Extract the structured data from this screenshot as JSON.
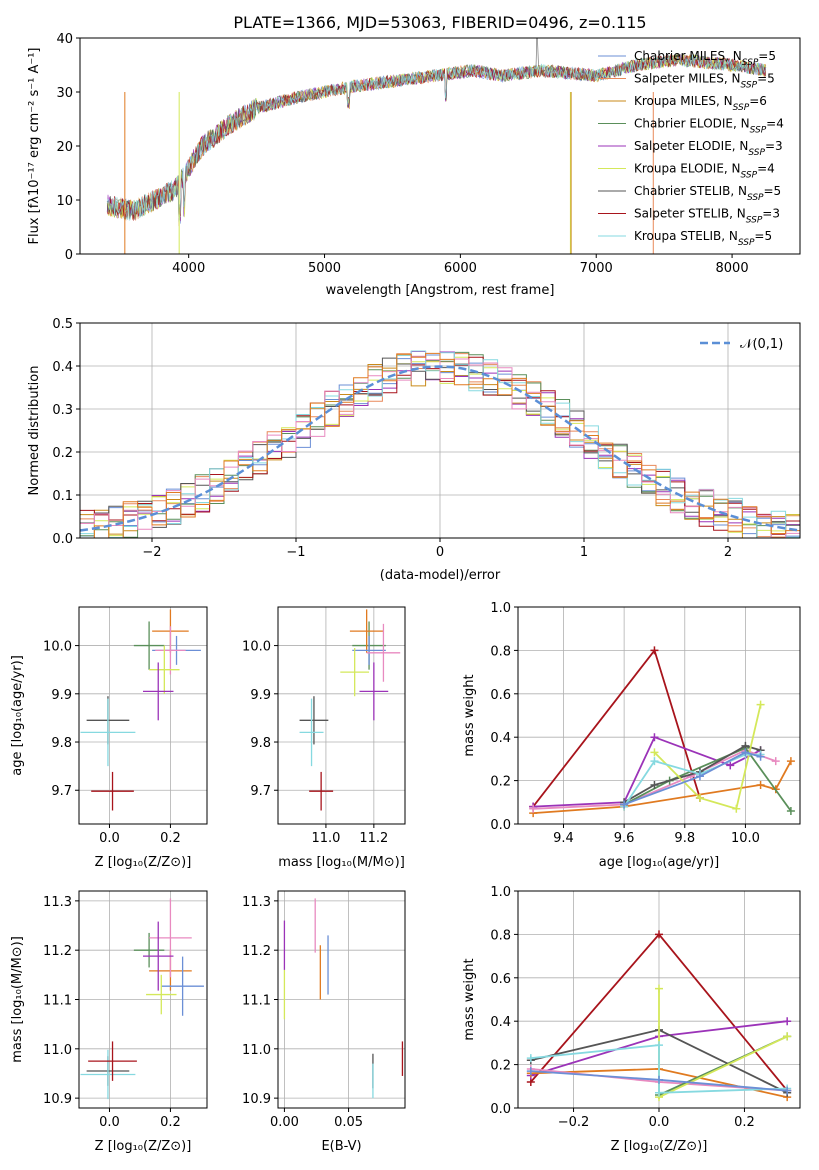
{
  "figure_title": "PLATE=1366, MJD=53063, FIBERID=0496, z=0.115",
  "colors": {
    "chabrier_miles": "#6b8fd6",
    "salpeter_miles": "#e8895a",
    "kroupa_miles": "#c98a1a",
    "chabrier_elodie": "#5a8f5a",
    "salpeter_elodie": "#9b33b8",
    "kroupa_elodie": "#d4e85a",
    "chabrier_stelib": "#555555",
    "salpeter_stelib": "#a8141c",
    "kroupa_stelib": "#86d9e0",
    "normal_curve": "#5b8fd6",
    "pink": "#e88ac0",
    "orange": "#e07a20"
  },
  "chart_data": [
    {
      "id": "spectrum",
      "type": "line",
      "xlabel": "wavelength [Angstrom, rest frame]",
      "ylabel": "Flux [fλ10⁻¹⁷ erg cm⁻² s⁻¹ A⁻¹]",
      "xlim": [
        3200,
        8500
      ],
      "ylim": [
        0,
        40
      ],
      "xticks": [
        "4000",
        "5000",
        "6000",
        "7000",
        "8000"
      ],
      "yticks": [
        "0",
        "10",
        "20",
        "30",
        "40"
      ],
      "legend_position": "top-right",
      "series": [
        {
          "name": "Chabrier MILES, N_SSP=5",
          "color": "#6b8fd6"
        },
        {
          "name": "Salpeter MILES, N_SSP=5",
          "color": "#e8895a"
        },
        {
          "name": "Kroupa MILES, N_SSP=6",
          "color": "#c98a1a"
        },
        {
          "name": "Chabrier ELODIE, N_SSP=4",
          "color": "#5a8f5a"
        },
        {
          "name": "Salpeter ELODIE, N_SSP=3",
          "color": "#9b33b8"
        },
        {
          "name": "Kroupa ELODIE, N_SSP=4",
          "color": "#d4e85a"
        },
        {
          "name": "Chabrier STELIB, N_SSP=5",
          "color": "#555555"
        },
        {
          "name": "Salpeter STELIB, N_SSP=3",
          "color": "#a8141c"
        },
        {
          "name": "Kroupa STELIB, N_SSP=5",
          "color": "#86d9e0"
        }
      ],
      "continuum": [
        [
          3400,
          9
        ],
        [
          3600,
          8
        ],
        [
          3900,
          12
        ],
        [
          4100,
          20
        ],
        [
          4300,
          24
        ],
        [
          4500,
          27
        ],
        [
          4800,
          29
        ],
        [
          5000,
          30
        ],
        [
          5200,
          31
        ],
        [
          5500,
          32
        ],
        [
          5800,
          33
        ],
        [
          6100,
          34
        ],
        [
          6300,
          33
        ],
        [
          6600,
          34
        ],
        [
          7000,
          33
        ],
        [
          7300,
          35
        ],
        [
          7600,
          36
        ],
        [
          8000,
          35
        ],
        [
          8250,
          34
        ]
      ]
    },
    {
      "id": "residuals",
      "type": "bar",
      "xlabel": "(data-model)/error",
      "ylabel": "Normed distribution",
      "xlim": [
        -2.5,
        2.5
      ],
      "ylim": [
        0,
        0.5
      ],
      "xticks": [
        "−2",
        "−1",
        "0",
        "1",
        "2"
      ],
      "yticks": [
        "0.0",
        "0.1",
        "0.2",
        "0.3",
        "0.4",
        "0.5"
      ],
      "grid": true,
      "legend": "𝒩(0,1)",
      "legend_position": "top-right",
      "bin_width": 0.1
    },
    {
      "id": "age_vs_Z",
      "type": "scatter",
      "xlabel": "Z [log₁₀(Z/Z⊙)]",
      "ylabel": "age  [log₁₀(age/yr)]",
      "xlim": [
        -0.1,
        0.32
      ],
      "ylim": [
        9.63,
        10.08
      ],
      "xticks": [
        {
          "v": 0,
          "t": "0.0"
        },
        {
          "v": 0.2,
          "t": "0.2"
        }
      ],
      "yticks": [
        {
          "v": 9.7,
          "t": "9.7"
        },
        {
          "v": 9.8,
          "t": "9.8"
        },
        {
          "v": 9.9,
          "t": "9.9"
        },
        {
          "v": 10.0,
          "t": "10.0"
        }
      ],
      "points": [
        {
          "x": -0.005,
          "xerr": 0.07,
          "y": 9.845,
          "yerr": 0.05,
          "color": "#555555"
        },
        {
          "x": -0.005,
          "xerr": 0.09,
          "y": 9.82,
          "yerr": 0.07,
          "color": "#86d9e0"
        },
        {
          "x": 0.01,
          "xerr": 0.07,
          "y": 9.698,
          "yerr": 0.04,
          "color": "#a8141c"
        },
        {
          "x": 0.13,
          "xerr": 0.05,
          "y": 10.0,
          "yerr": 0.05,
          "color": "#5a8f5a"
        },
        {
          "x": 0.2,
          "xerr": 0.06,
          "y": 10.03,
          "yerr": 0.045,
          "color": "#e07a20"
        },
        {
          "x": 0.22,
          "xerr": 0.08,
          "y": 9.99,
          "yerr": 0.03,
          "color": "#6b8fd6"
        },
        {
          "x": 0.2,
          "xerr": 0.05,
          "y": 9.99,
          "yerr": 0.05,
          "color": "#e88ac0"
        },
        {
          "x": 0.18,
          "xerr": 0.05,
          "y": 9.95,
          "yerr": 0.05,
          "color": "#d4e85a"
        },
        {
          "x": 0.16,
          "xerr": 0.05,
          "y": 9.905,
          "yerr": 0.06,
          "color": "#9b33b8"
        }
      ]
    },
    {
      "id": "age_vs_mass",
      "type": "scatter",
      "xlabel": "mass [log₁₀(M/M⊙)]",
      "xlim": [
        10.8,
        11.33
      ],
      "ylim": [
        9.63,
        10.08
      ],
      "xticks": [
        {
          "v": 11.0,
          "t": "11.0"
        },
        {
          "v": 11.2,
          "t": "11.2"
        }
      ],
      "yticks": [
        {
          "v": 9.7,
          "t": "9.7"
        },
        {
          "v": 9.8,
          "t": "9.8"
        },
        {
          "v": 9.9,
          "t": "9.9"
        },
        {
          "v": 10.0,
          "t": "10.0"
        }
      ],
      "points": [
        {
          "x": 10.95,
          "xerr": 0.06,
          "y": 9.845,
          "yerr": 0.05,
          "color": "#555555"
        },
        {
          "x": 10.94,
          "xerr": 0.05,
          "y": 9.82,
          "yerr": 0.07,
          "color": "#86d9e0"
        },
        {
          "x": 10.98,
          "xerr": 0.05,
          "y": 9.698,
          "yerr": 0.04,
          "color": "#a8141c"
        },
        {
          "x": 11.18,
          "xerr": 0.07,
          "y": 10.0,
          "yerr": 0.05,
          "color": "#5a8f5a"
        },
        {
          "x": 11.17,
          "xerr": 0.07,
          "y": 10.03,
          "yerr": 0.045,
          "color": "#e07a20"
        },
        {
          "x": 11.18,
          "xerr": 0.07,
          "y": 9.99,
          "yerr": 0.03,
          "color": "#6b8fd6"
        },
        {
          "x": 11.24,
          "xerr": 0.07,
          "y": 9.985,
          "yerr": 0.06,
          "color": "#e88ac0"
        },
        {
          "x": 11.12,
          "xerr": 0.06,
          "y": 9.945,
          "yerr": 0.05,
          "color": "#d4e85a"
        },
        {
          "x": 11.2,
          "xerr": 0.06,
          "y": 9.905,
          "yerr": 0.06,
          "color": "#9b33b8"
        }
      ]
    },
    {
      "id": "weight_vs_age",
      "type": "line",
      "xlabel": "age  [log₁₀(age/yr)]",
      "ylabel": "mass weight",
      "xlim": [
        9.25,
        10.18
      ],
      "ylim": [
        0,
        1.0
      ],
      "xticks": [
        {
          "v": 9.4,
          "t": "9.4"
        },
        {
          "v": 9.6,
          "t": "9.6"
        },
        {
          "v": 9.8,
          "t": "9.8"
        },
        {
          "v": 10.0,
          "t": "10.0"
        }
      ],
      "yticks": [
        {
          "v": 0,
          "t": "0.0"
        },
        {
          "v": 0.2,
          "t": "0.2"
        },
        {
          "v": 0.4,
          "t": "0.4"
        },
        {
          "v": 0.6,
          "t": "0.6"
        },
        {
          "v": 0.8,
          "t": "0.8"
        },
        {
          "v": 1.0,
          "t": "1.0"
        }
      ],
      "series": [
        {
          "color": "#a8141c",
          "pts": [
            [
              9.3,
              0.08
            ],
            [
              9.7,
              0.8
            ],
            [
              9.85,
              0.12
            ]
          ]
        },
        {
          "color": "#9b33b8",
          "pts": [
            [
              9.3,
              0.08
            ],
            [
              9.6,
              0.1
            ],
            [
              9.7,
              0.4
            ],
            [
              9.95,
              0.27
            ],
            [
              10.05,
              0.34
            ]
          ]
        },
        {
          "color": "#e07a20",
          "pts": [
            [
              9.3,
              0.05
            ],
            [
              9.6,
              0.08
            ],
            [
              10.05,
              0.18
            ],
            [
              10.1,
              0.16
            ],
            [
              10.15,
              0.29
            ]
          ]
        },
        {
          "color": "#e88ac0",
          "pts": [
            [
              9.3,
              0.07
            ],
            [
              9.6,
              0.09
            ],
            [
              9.82,
              0.22
            ],
            [
              10.0,
              0.34
            ],
            [
              10.1,
              0.29
            ]
          ]
        },
        {
          "color": "#5a8f5a",
          "pts": [
            [
              9.6,
              0.09
            ],
            [
              9.75,
              0.2
            ],
            [
              10.0,
              0.35
            ],
            [
              10.15,
              0.06
            ]
          ]
        },
        {
          "color": "#555555",
          "pts": [
            [
              9.6,
              0.1
            ],
            [
              9.7,
              0.18
            ],
            [
              9.85,
              0.24
            ],
            [
              10.0,
              0.36
            ],
            [
              10.05,
              0.34
            ]
          ]
        },
        {
          "color": "#d4e85a",
          "pts": [
            [
              9.7,
              0.33
            ],
            [
              9.85,
              0.12
            ],
            [
              9.97,
              0.07
            ],
            [
              10.05,
              0.55
            ]
          ]
        },
        {
          "color": "#86d9e0",
          "pts": [
            [
              9.6,
              0.08
            ],
            [
              9.7,
              0.29
            ],
            [
              9.85,
              0.23
            ],
            [
              10.0,
              0.32
            ],
            [
              10.05,
              0.32
            ]
          ]
        },
        {
          "color": "#6b8fd6",
          "pts": [
            [
              9.6,
              0.09
            ],
            [
              9.85,
              0.22
            ],
            [
              10.0,
              0.33
            ],
            [
              10.05,
              0.31
            ]
          ]
        }
      ]
    },
    {
      "id": "mass_vs_Z",
      "type": "scatter",
      "xlabel": "Z [log₁₀(Z/Z⊙)]",
      "ylabel": "mass [log₁₀(M/M⊙)]",
      "xlim": [
        -0.1,
        0.32
      ],
      "ylim": [
        10.88,
        11.32
      ],
      "xticks": [
        {
          "v": 0,
          "t": "0.0"
        },
        {
          "v": 0.2,
          "t": "0.2"
        }
      ],
      "yticks": [
        {
          "v": 10.9,
          "t": "10.9"
        },
        {
          "v": 11.0,
          "t": "11.0"
        },
        {
          "v": 11.1,
          "t": "11.1"
        },
        {
          "v": 11.2,
          "t": "11.2"
        },
        {
          "v": 11.3,
          "t": "11.3"
        }
      ],
      "points": [
        {
          "x": -0.005,
          "xerr": 0.07,
          "y": 10.955,
          "yerr": 0.03,
          "color": "#555555"
        },
        {
          "x": -0.005,
          "xerr": 0.09,
          "y": 10.948,
          "yerr": 0.05,
          "color": "#86d9e0"
        },
        {
          "x": 0.01,
          "xerr": 0.08,
          "y": 10.975,
          "yerr": 0.04,
          "color": "#a8141c"
        },
        {
          "x": 0.13,
          "xerr": 0.05,
          "y": 11.2,
          "yerr": 0.035,
          "color": "#5a8f5a"
        },
        {
          "x": 0.2,
          "xerr": 0.07,
          "y": 11.158,
          "yerr": 0.04,
          "color": "#e07a20"
        },
        {
          "x": 0.24,
          "xerr": 0.07,
          "y": 11.127,
          "yerr": 0.06,
          "color": "#6b8fd6"
        },
        {
          "x": 0.2,
          "xerr": 0.07,
          "y": 11.225,
          "yerr": 0.08,
          "color": "#e88ac0"
        },
        {
          "x": 0.17,
          "xerr": 0.05,
          "y": 11.11,
          "yerr": 0.04,
          "color": "#d4e85a"
        },
        {
          "x": 0.16,
          "xerr": 0.05,
          "y": 11.188,
          "yerr": 0.07,
          "color": "#9b33b8"
        }
      ]
    },
    {
      "id": "mass_vs_ebv",
      "type": "scatter",
      "xlabel": "E(B-V)",
      "xlim": [
        -0.005,
        0.094
      ],
      "ylim": [
        10.88,
        11.32
      ],
      "xticks": [
        {
          "v": 0,
          "t": "0.00"
        },
        {
          "v": 0.05,
          "t": "0.05"
        }
      ],
      "yticks": [
        {
          "v": 10.9,
          "t": "10.9"
        },
        {
          "v": 11.0,
          "t": "11.0"
        },
        {
          "v": 11.1,
          "t": "11.1"
        },
        {
          "v": 11.2,
          "t": "11.2"
        },
        {
          "v": 11.3,
          "t": "11.3"
        }
      ],
      "points": [
        {
          "x": 0.0,
          "y": 11.21,
          "yerr": 0.05,
          "color": "#9b33b8"
        },
        {
          "x": 0.0,
          "y": 11.11,
          "yerr": 0.05,
          "color": "#d4e85a"
        },
        {
          "x": 0.024,
          "y": 11.25,
          "yerr": 0.055,
          "color": "#e88ac0"
        },
        {
          "x": 0.028,
          "y": 11.155,
          "yerr": 0.055,
          "color": "#e07a20"
        },
        {
          "x": 0.034,
          "y": 11.17,
          "yerr": 0.06,
          "color": "#6b8fd6"
        },
        {
          "x": 0.069,
          "y": 10.955,
          "yerr": 0.035,
          "color": "#555555"
        },
        {
          "x": 0.069,
          "y": 10.935,
          "yerr": 0.035,
          "color": "#86d9e0"
        },
        {
          "x": 0.092,
          "y": 10.98,
          "yerr": 0.035,
          "color": "#a8141c"
        }
      ]
    },
    {
      "id": "weight_vs_Z",
      "type": "line",
      "xlabel": "Z [log₁₀(Z/Z⊙)]",
      "ylabel": "mass weight",
      "xlim": [
        -0.33,
        0.33
      ],
      "ylim": [
        0,
        1.0
      ],
      "xticks": [
        {
          "v": -0.2,
          "t": "−0.2"
        },
        {
          "v": 0,
          "t": "0.0"
        },
        {
          "v": 0.2,
          "t": "0.2"
        }
      ],
      "yticks": [
        {
          "v": 0,
          "t": "0.0"
        },
        {
          "v": 0.2,
          "t": "0.2"
        },
        {
          "v": 0.4,
          "t": "0.4"
        },
        {
          "v": 0.6,
          "t": "0.6"
        },
        {
          "v": 0.8,
          "t": "0.8"
        },
        {
          "v": 1.0,
          "t": "1.0"
        }
      ],
      "series": [
        {
          "color": "#a8141c",
          "pts": [
            [
              -0.3,
              0.12
            ],
            [
              0,
              0.8
            ],
            [
              0.3,
              0.08
            ]
          ]
        },
        {
          "color": "#9b33b8",
          "pts": [
            [
              -0.3,
              0.15
            ],
            [
              0,
              0.33
            ],
            [
              0.3,
              0.4
            ]
          ]
        },
        {
          "color": "#e07a20",
          "pts": [
            [
              -0.3,
              0.16
            ],
            [
              0,
              0.18
            ],
            [
              0.3,
              0.05
            ]
          ]
        },
        {
          "color": "#e88ac0",
          "pts": [
            [
              -0.3,
              0.18
            ],
            [
              0,
              0.12
            ],
            [
              0.3,
              0.08
            ]
          ]
        },
        {
          "color": "#5a8f5a",
          "pts": [
            [
              0,
              0.06
            ],
            [
              0.3,
              0.33
            ]
          ]
        },
        {
          "color": "#555555",
          "pts": [
            [
              -0.3,
              0.22
            ],
            [
              0,
              0.36
            ],
            [
              0.3,
              0.07
            ]
          ]
        },
        {
          "color": "#d4e85a",
          "pts": [
            [
              0,
              0.55
            ],
            [
              0,
              0.05
            ],
            [
              0.3,
              0.33
            ]
          ]
        },
        {
          "color": "#86d9e0",
          "pts": [
            [
              -0.3,
              0.23
            ],
            [
              0,
              0.29
            ],
            [
              0,
              0.07
            ],
            [
              0.3,
              0.09
            ]
          ]
        },
        {
          "color": "#6b8fd6",
          "pts": [
            [
              -0.3,
              0.17
            ],
            [
              0,
              0.13
            ],
            [
              0.3,
              0.08
            ]
          ]
        }
      ]
    }
  ]
}
